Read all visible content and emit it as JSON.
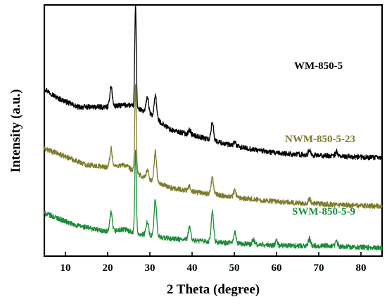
{
  "chart_data": {
    "type": "line",
    "xlabel": "2 Theta (degree)",
    "ylabel": "Intensity (a.u.)",
    "xlim": [
      5,
      85
    ],
    "x_ticks": [
      10,
      20,
      30,
      40,
      50,
      60,
      70,
      80
    ],
    "y_ticks_labeled": false,
    "grid": false,
    "legend": "inline labels beside each trace",
    "series": [
      {
        "name": "WM-850-5",
        "color": "#000000",
        "baseline_points": [
          [
            5,
            0.66
          ],
          [
            8,
            0.62
          ],
          [
            13,
            0.58
          ],
          [
            20,
            0.58
          ],
          [
            25,
            0.59
          ],
          [
            30,
            0.55
          ],
          [
            35,
            0.48
          ],
          [
            42,
            0.45
          ],
          [
            50,
            0.41
          ],
          [
            60,
            0.38
          ],
          [
            70,
            0.37
          ],
          [
            85,
            0.36
          ]
        ],
        "peaks": [
          [
            20.8,
            0.09
          ],
          [
            26.6,
            0.44
          ],
          [
            29.4,
            0.07
          ],
          [
            31.3,
            0.1
          ],
          [
            39.4,
            0.02
          ],
          [
            44.8,
            0.08
          ],
          [
            50.1,
            0.02
          ],
          [
            67.8,
            0.02
          ],
          [
            74.2,
            0.02
          ]
        ]
      },
      {
        "name": "NWM-850-5-23",
        "color": "#7d7d2c",
        "baseline_points": [
          [
            5,
            0.4
          ],
          [
            8,
            0.38
          ],
          [
            15,
            0.33
          ],
          [
            20,
            0.32
          ],
          [
            24,
            0.33
          ],
          [
            28,
            0.28
          ],
          [
            35,
            0.23
          ],
          [
            42,
            0.21
          ],
          [
            50,
            0.19
          ],
          [
            60,
            0.17
          ],
          [
            70,
            0.16
          ],
          [
            85,
            0.15
          ]
        ],
        "peaks": [
          [
            20.8,
            0.08
          ],
          [
            26.6,
            0.38
          ],
          [
            29.4,
            0.04
          ],
          [
            31.3,
            0.13
          ],
          [
            39.4,
            0.02
          ],
          [
            44.8,
            0.07
          ],
          [
            50.1,
            0.03
          ],
          [
            67.8,
            0.02
          ]
        ]
      },
      {
        "name": "SWM-850-5-9",
        "color": "#1e8c3a",
        "baseline_points": [
          [
            5,
            0.12
          ],
          [
            8,
            0.1
          ],
          [
            12,
            0.07
          ],
          [
            20,
            0.04
          ],
          [
            24,
            0.05
          ],
          [
            28,
            0.03
          ],
          [
            35,
            0.01
          ],
          [
            42,
            0.0
          ],
          [
            50,
            -0.01
          ],
          [
            60,
            -0.02
          ],
          [
            70,
            -0.02
          ],
          [
            85,
            -0.03
          ]
        ],
        "peaks": [
          [
            20.8,
            0.08
          ],
          [
            26.6,
            0.36
          ],
          [
            29.4,
            0.06
          ],
          [
            31.3,
            0.16
          ],
          [
            39.4,
            0.06
          ],
          [
            44.8,
            0.13
          ],
          [
            50.1,
            0.05
          ],
          [
            54.5,
            0.02
          ],
          [
            60.0,
            0.02
          ],
          [
            67.8,
            0.03
          ],
          [
            74.2,
            0.02
          ]
        ]
      }
    ]
  }
}
